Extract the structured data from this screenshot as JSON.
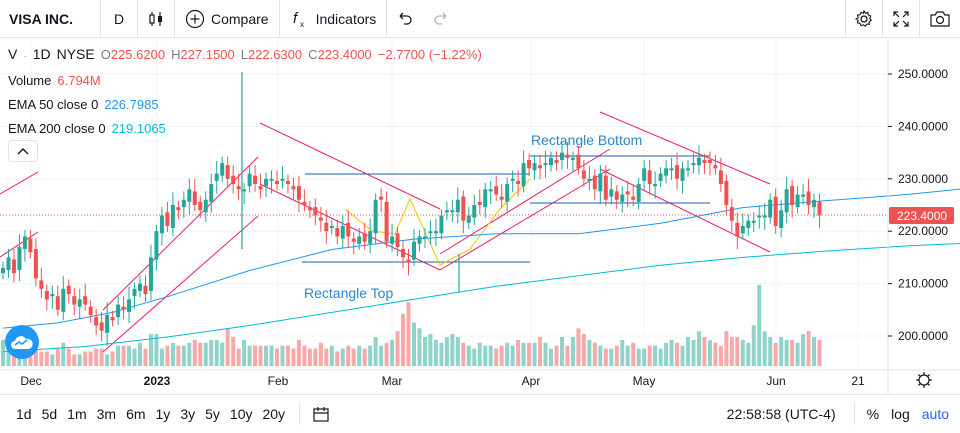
{
  "header": {
    "symbol": "VISA INC.",
    "interval": "D",
    "compare_label": "Compare",
    "indicators_label": "Indicators"
  },
  "legend": {
    "ticker": "V",
    "interval": "1D",
    "exchange": "NYSE",
    "open_label": "O",
    "open": "225.6200",
    "high_label": "H",
    "high": "227.1500",
    "low_label": "L",
    "low": "222.6300",
    "close_label": "C",
    "close": "223.4000",
    "change": "−2.7700 (−1.22%)",
    "volume_label": "Volume",
    "volume": "6.794M",
    "ema50_label": "EMA 50 close 0",
    "ema50": "226.7985",
    "ema200_label": "EMA 200 close 0",
    "ema200": "219.1065"
  },
  "annotations": {
    "rect_bottom": "Rectangle Bottom",
    "rect_top": "Rectangle Top"
  },
  "bottom": {
    "ranges": [
      "1d",
      "5d",
      "1m",
      "3m",
      "6m",
      "1y",
      "3y",
      "5y",
      "10y",
      "20y"
    ],
    "time": "22:58:58 (UTC-4)",
    "percent": "%",
    "log": "log",
    "auto": "auto"
  },
  "colors": {
    "up": "#26a69a",
    "down": "#ef5350",
    "ema50": "#2196f3",
    "ema200": "#00bcd4",
    "channel": "#e91e63",
    "rect": "#1e5fa8",
    "accent": "#2962ff"
  },
  "chart_data": {
    "type": "candlestick",
    "title": "",
    "ylim": [
      195,
      255
    ],
    "y_ticks": [
      "250.0000",
      "240.0000",
      "230.0000",
      "220.0000",
      "210.0000",
      "200.0000"
    ],
    "x_ticks": [
      "Dec",
      "2023",
      "Feb",
      "Mar",
      "Apr",
      "May",
      "Jun",
      "21"
    ],
    "last_price_label": "223.4000",
    "series": [
      {
        "name": "EMA 50 close 0",
        "x": [
          0,
          10,
          20,
          30,
          45,
          60,
          75,
          90,
          105,
          120,
          135,
          150,
          165,
          180,
          190,
          200,
          206
        ],
        "values": [
          201.5,
          202.5,
          204.5,
          207.5,
          212.5,
          216.5,
          218.5,
          219.5,
          219.5,
          221.5,
          224.5,
          225.8,
          227.0,
          228.6,
          228.2,
          227.4,
          226.8
        ]
      },
      {
        "name": "EMA 200 close 0",
        "x": [
          0,
          15,
          30,
          45,
          60,
          75,
          90,
          105,
          120,
          135,
          150,
          165,
          180,
          195,
          206
        ],
        "values": [
          197.0,
          198.0,
          199.8,
          202.0,
          204.5,
          207.0,
          209.5,
          211.5,
          213.5,
          215.0,
          216.2,
          217.2,
          217.9,
          218.6,
          219.1
        ]
      }
    ],
    "closes": [
      213,
      215,
      212,
      217,
      219,
      216,
      211,
      209,
      207,
      208,
      205,
      209,
      208,
      206,
      207,
      206,
      204,
      202,
      201,
      204,
      203,
      206,
      205,
      207,
      209,
      210,
      208,
      215,
      220,
      223,
      221,
      225,
      224,
      226,
      228,
      225,
      224,
      226,
      229,
      231,
      233,
      230,
      229,
      228,
      228,
      231,
      229,
      228,
      230,
      230,
      229,
      230,
      229,
      228,
      226,
      225,
      224,
      223,
      222,
      220,
      221,
      219,
      221,
      219,
      218,
      219,
      218,
      220,
      226,
      226,
      218,
      219,
      217,
      215,
      214,
      218,
      219,
      219,
      220,
      220,
      223,
      224,
      224,
      226,
      222,
      223,
      225,
      225,
      228,
      228,
      227,
      226,
      229,
      230,
      229,
      233,
      232,
      233,
      232,
      233,
      234,
      233,
      235,
      234,
      234,
      232,
      230,
      230,
      228,
      231,
      226,
      228,
      226,
      227,
      227,
      226,
      229,
      232,
      229,
      229,
      231,
      232,
      232,
      230,
      232,
      232,
      233,
      234,
      233,
      233,
      232,
      229,
      225,
      222,
      219,
      221,
      222,
      222,
      223,
      223,
      226,
      221,
      224,
      228,
      225,
      227,
      227,
      225,
      226,
      223
    ],
    "volumes": [
      9,
      7,
      5,
      10,
      9,
      7,
      6,
      5,
      5,
      4,
      6,
      8,
      6,
      4,
      4,
      5,
      5,
      6,
      6,
      4,
      5,
      7,
      7,
      7,
      6,
      8,
      6,
      11,
      11,
      6,
      7,
      8,
      7,
      7,
      8,
      9,
      8,
      8,
      9,
      9,
      8,
      13,
      10,
      6,
      9,
      7,
      7,
      7,
      7,
      7,
      6,
      7,
      7,
      6,
      9,
      7,
      6,
      6,
      8,
      6,
      7,
      5,
      6,
      7,
      6,
      7,
      6,
      7,
      10,
      7,
      8,
      9,
      12,
      18,
      22,
      15,
      13,
      10,
      11,
      9,
      8,
      10,
      11,
      10,
      8,
      7,
      6,
      8,
      7,
      7,
      6,
      7,
      8,
      7,
      9,
      8,
      8,
      8,
      10,
      8,
      6,
      7,
      10,
      7,
      10,
      13,
      11,
      9,
      8,
      7,
      6,
      6,
      7,
      9,
      7,
      8,
      6,
      6,
      7,
      7,
      6,
      8,
      9,
      8,
      7,
      10,
      9,
      12,
      10,
      9,
      8,
      7,
      12,
      10,
      10,
      9,
      8,
      14,
      28,
      12,
      10,
      8,
      10,
      9,
      9,
      8,
      11,
      12,
      10,
      9
    ]
  }
}
